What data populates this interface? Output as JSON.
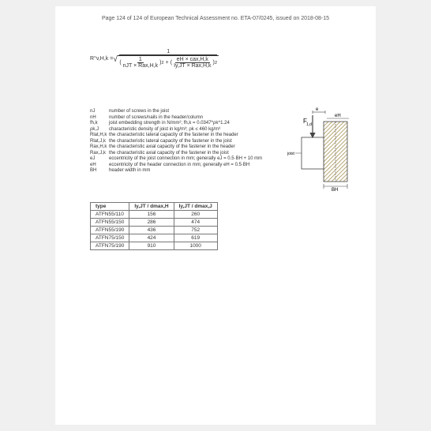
{
  "header": "Page 124 of 124 of European Technical Assessment no. ETA-07/0245, issued on 2018-08-15",
  "formula": {
    "lhs": "R°v,H,k =",
    "num_top": "1",
    "term1_num": "1",
    "term1_den": "nJT × Rax,H,k",
    "term2_num": "eH × cax,H,k",
    "term2_den": "Iy,JT × Rax,H,k",
    "exp": "2"
  },
  "defs": [
    {
      "sym": "nJ",
      "txt": "number of screws in the joist"
    },
    {
      "sym": "nH",
      "txt": "number of screws/nails in the header/column"
    },
    {
      "sym": "fh,k",
      "txt": "joist embedding strength in N/mm²; fh,k = 0.0347*ρk^1.24"
    },
    {
      "sym": "ρk,J",
      "txt": "characteristic density of joist in kg/m³; ρk ≤ 460 kg/m³"
    },
    {
      "sym": "Rlat,H,k",
      "txt": "the characteristic lateral capacity of the fastener in the header"
    },
    {
      "sym": "Rlat,J,k",
      "txt": "the characteristic lateral capacity of the fastener in the joist"
    },
    {
      "sym": "Rax,H,k",
      "txt": "the characteristic axial capacity of the fastener in the header"
    },
    {
      "sym": "Rax,J,k",
      "txt": "the characteristic axial capacity of the fastener in the joist"
    },
    {
      "sym": "eJ",
      "txt": "eccentricity of the joist connection in mm; generally eJ = 0.5·BH + 10 mm"
    },
    {
      "sym": "eH",
      "txt": "eccentricity of the header connection in mm; generally eH = 0.5·BH"
    },
    {
      "sym": "BH",
      "txt": "header width in mm"
    }
  ],
  "diagram": {
    "force_label": "F1,d",
    "eJ": "eJ",
    "eH": "eH",
    "BH": "BH",
    "joist": "joist"
  },
  "table": {
    "headers": [
      "type",
      "Iy,JT / dmax,H",
      "Iy,JT / dmax,J"
    ],
    "rows": [
      [
        "ATFN55/110",
        "156",
        "260"
      ],
      [
        "ATFN55/150",
        "286",
        "474"
      ],
      [
        "ATFN55/190",
        "436",
        "752"
      ],
      [
        "ATFN75/150",
        "424",
        "619"
      ],
      [
        "ATFN75/190",
        "910",
        "1000"
      ]
    ]
  },
  "colors": {
    "hatch": "#b8a878",
    "line": "#444444"
  }
}
